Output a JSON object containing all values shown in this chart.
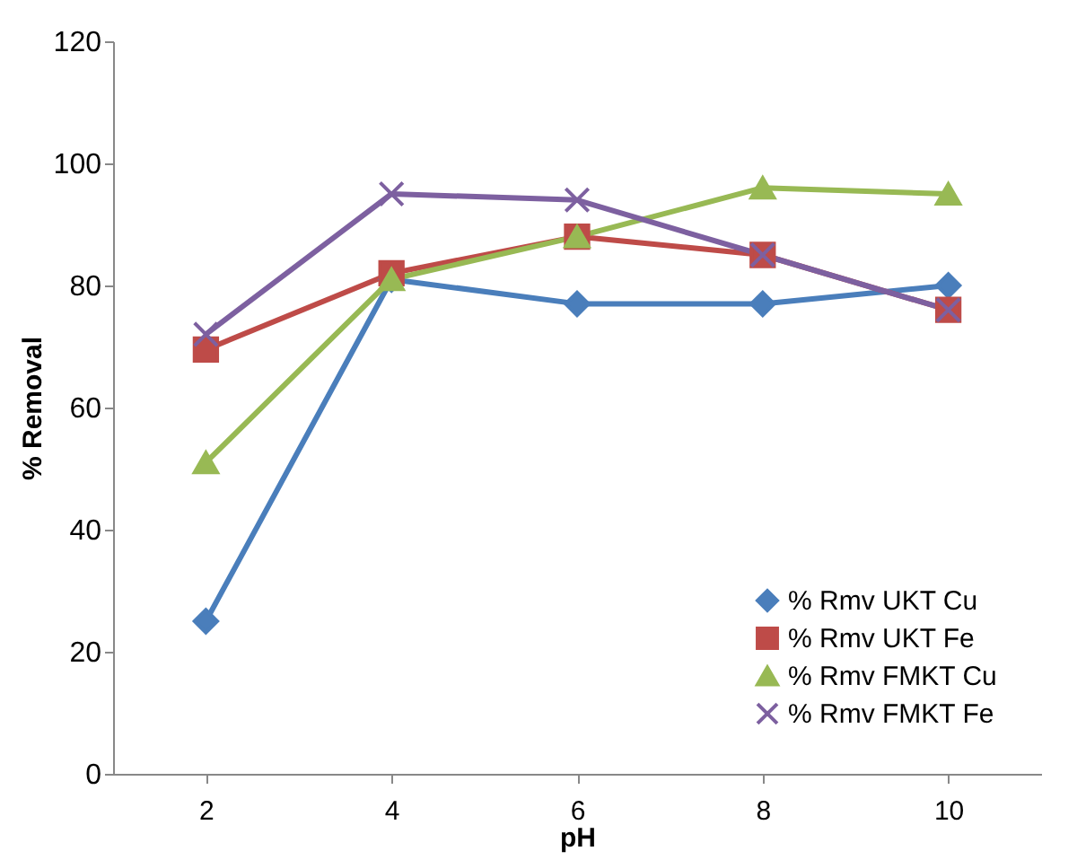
{
  "chart_data": {
    "type": "line",
    "xlabel": "pH",
    "ylabel": "% Removal",
    "categories": [
      "2",
      "4",
      "6",
      "8",
      "10"
    ],
    "series": [
      {
        "name": "% Rmv UKT Cu",
        "color": "#4a7ebb",
        "marker": "diamond",
        "values": [
          25,
          81,
          77,
          77,
          80
        ]
      },
      {
        "name": "% Rmv UKT Fe",
        "color": "#be4b48",
        "marker": "square",
        "values": [
          69.5,
          82,
          88,
          85,
          76
        ]
      },
      {
        "name": "% Rmv FMKT Cu",
        "color": "#98b954",
        "marker": "triangle",
        "values": [
          51,
          81,
          88,
          96,
          95
        ]
      },
      {
        "name": "% Rmv FMKT Fe",
        "color": "#7d60a0",
        "marker": "cross",
        "values": [
          72,
          95,
          94,
          85,
          76
        ]
      }
    ],
    "ylim": [
      0,
      120
    ],
    "yticks": [
      0,
      20,
      40,
      60,
      80,
      100,
      120
    ],
    "grid": false,
    "legend": "bottom right"
  }
}
